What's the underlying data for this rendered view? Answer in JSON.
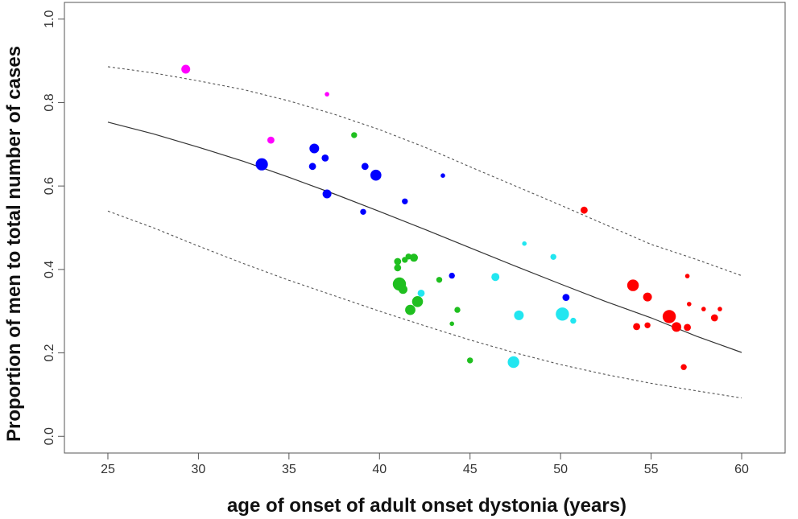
{
  "chart_data": {
    "type": "scatter",
    "title": "",
    "xlabel": "age of onset of adult onset dystonia (years)",
    "ylabel": "Proportion of  men to total number of cases",
    "xlim": [
      22.6,
      62.4
    ],
    "ylim": [
      -0.04,
      1.04
    ],
    "xticks": [
      25,
      30,
      35,
      40,
      45,
      50,
      55,
      60
    ],
    "yticks": [
      0.0,
      0.2,
      0.4,
      0.6,
      0.8,
      1.0
    ],
    "xtick_labels": [
      "25",
      "30",
      "35",
      "40",
      "45",
      "50",
      "55",
      "60"
    ],
    "ytick_labels": [
      "0.0",
      "0.2",
      "0.4",
      "0.6",
      "0.8",
      "1.0"
    ],
    "grid": false,
    "colors": {
      "magenta": "#ff00ff",
      "blue": "#0000ff",
      "green": "#1fbf1f",
      "cyan": "#22e6f0",
      "red": "#ff0000",
      "fit_line": "#333333",
      "ci_line": "#555555"
    },
    "series": [
      {
        "name": "magenta",
        "color_key": "magenta",
        "points": [
          {
            "x": 29.3,
            "y": 0.88,
            "size": 5
          },
          {
            "x": 34.0,
            "y": 0.71,
            "size": 3
          },
          {
            "x": 37.1,
            "y": 0.82,
            "size": 1
          }
        ]
      },
      {
        "name": "blue",
        "color_key": "blue",
        "points": [
          {
            "x": 33.5,
            "y": 0.652,
            "size": 10
          },
          {
            "x": 36.4,
            "y": 0.69,
            "size": 6
          },
          {
            "x": 36.3,
            "y": 0.647,
            "size": 3
          },
          {
            "x": 37.0,
            "y": 0.667,
            "size": 3
          },
          {
            "x": 37.1,
            "y": 0.581,
            "size": 5
          },
          {
            "x": 39.2,
            "y": 0.647,
            "size": 3
          },
          {
            "x": 39.1,
            "y": 0.538,
            "size": 2
          },
          {
            "x": 39.8,
            "y": 0.626,
            "size": 8
          },
          {
            "x": 41.4,
            "y": 0.563,
            "size": 2
          },
          {
            "x": 43.5,
            "y": 0.625,
            "size": 1
          },
          {
            "x": 44.0,
            "y": 0.385,
            "size": 2
          },
          {
            "x": 50.3,
            "y": 0.333,
            "size": 3
          }
        ]
      },
      {
        "name": "green",
        "color_key": "green",
        "points": [
          {
            "x": 38.6,
            "y": 0.722,
            "size": 2
          },
          {
            "x": 41.0,
            "y": 0.419,
            "size": 3
          },
          {
            "x": 41.0,
            "y": 0.404,
            "size": 3
          },
          {
            "x": 41.4,
            "y": 0.423,
            "size": 2
          },
          {
            "x": 41.6,
            "y": 0.431,
            "size": 2
          },
          {
            "x": 41.9,
            "y": 0.428,
            "size": 4
          },
          {
            "x": 41.1,
            "y": 0.365,
            "size": 12
          },
          {
            "x": 41.3,
            "y": 0.352,
            "size": 5
          },
          {
            "x": 42.1,
            "y": 0.323,
            "size": 8
          },
          {
            "x": 41.7,
            "y": 0.303,
            "size": 7
          },
          {
            "x": 43.3,
            "y": 0.375,
            "size": 2
          },
          {
            "x": 44.3,
            "y": 0.303,
            "size": 2
          },
          {
            "x": 44.0,
            "y": 0.27,
            "size": 1
          },
          {
            "x": 45.0,
            "y": 0.182,
            "size": 2
          }
        ]
      },
      {
        "name": "cyan",
        "color_key": "cyan",
        "points": [
          {
            "x": 42.3,
            "y": 0.343,
            "size": 3
          },
          {
            "x": 46.4,
            "y": 0.382,
            "size": 4
          },
          {
            "x": 48.0,
            "y": 0.462,
            "size": 1
          },
          {
            "x": 49.6,
            "y": 0.43,
            "size": 2
          },
          {
            "x": 47.7,
            "y": 0.29,
            "size": 6
          },
          {
            "x": 47.4,
            "y": 0.178,
            "size": 9
          },
          {
            "x": 50.1,
            "y": 0.293,
            "size": 12
          },
          {
            "x": 50.7,
            "y": 0.277,
            "size": 2
          }
        ]
      },
      {
        "name": "red",
        "color_key": "red",
        "points": [
          {
            "x": 51.3,
            "y": 0.542,
            "size": 3
          },
          {
            "x": 54.0,
            "y": 0.362,
            "size": 9
          },
          {
            "x": 54.8,
            "y": 0.334,
            "size": 5
          },
          {
            "x": 54.2,
            "y": 0.263,
            "size": 3
          },
          {
            "x": 54.8,
            "y": 0.266,
            "size": 2
          },
          {
            "x": 56.0,
            "y": 0.287,
            "size": 12
          },
          {
            "x": 56.4,
            "y": 0.262,
            "size": 6
          },
          {
            "x": 57.0,
            "y": 0.261,
            "size": 3
          },
          {
            "x": 57.0,
            "y": 0.384,
            "size": 1
          },
          {
            "x": 57.1,
            "y": 0.317,
            "size": 1
          },
          {
            "x": 57.9,
            "y": 0.305,
            "size": 1
          },
          {
            "x": 58.5,
            "y": 0.284,
            "size": 3
          },
          {
            "x": 58.8,
            "y": 0.305,
            "size": 1
          },
          {
            "x": 56.8,
            "y": 0.166,
            "size": 2
          }
        ]
      }
    ],
    "lines": [
      {
        "name": "fitted-curve",
        "style": "solid",
        "color_key": "fit_line",
        "x": [
          25,
          27.5,
          30,
          32.5,
          35,
          37.5,
          40,
          42.5,
          45,
          47.5,
          50,
          52.5,
          55,
          57.5,
          60
        ],
        "y": [
          0.753,
          0.725,
          0.693,
          0.659,
          0.621,
          0.581,
          0.539,
          0.496,
          0.452,
          0.408,
          0.365,
          0.323,
          0.284,
          0.24,
          0.201
        ]
      },
      {
        "name": "upper-bound",
        "style": "dotted",
        "color_key": "ci_line",
        "x": [
          25,
          27.5,
          30,
          32.5,
          35,
          37.5,
          40,
          42.5,
          45,
          47.5,
          50,
          52.5,
          55,
          57.5,
          60
        ],
        "y": [
          0.886,
          0.871,
          0.852,
          0.831,
          0.804,
          0.772,
          0.735,
          0.693,
          0.646,
          0.6,
          0.554,
          0.507,
          0.46,
          0.424,
          0.385
        ]
      },
      {
        "name": "lower-bound",
        "style": "dotted",
        "color_key": "ci_line",
        "x": [
          25,
          27.5,
          30,
          32.5,
          35,
          37.5,
          40,
          42.5,
          45,
          47.5,
          50,
          52.5,
          55,
          57.5,
          60
        ],
        "y": [
          0.54,
          0.5,
          0.456,
          0.414,
          0.374,
          0.337,
          0.3,
          0.265,
          0.231,
          0.2,
          0.172,
          0.148,
          0.127,
          0.109,
          0.092
        ]
      }
    ]
  }
}
